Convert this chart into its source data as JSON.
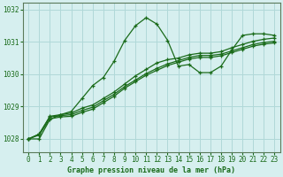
{
  "xlabel": "Graphe pression niveau de la mer (hPa)",
  "ylim": [
    1027.6,
    1032.2
  ],
  "xlim": [
    -0.5,
    23.5
  ],
  "yticks": [
    1028,
    1029,
    1030,
    1031,
    1032
  ],
  "xticks": [
    0,
    1,
    2,
    3,
    4,
    5,
    6,
    7,
    8,
    9,
    10,
    11,
    12,
    13,
    14,
    15,
    16,
    17,
    18,
    19,
    20,
    21,
    22,
    23
  ],
  "bg_color": "#d6efef",
  "line_color": "#1a6b1a",
  "series": [
    [
      1028.0,
      1028.0,
      1028.6,
      1028.75,
      1028.85,
      1029.25,
      1029.65,
      1029.9,
      1030.4,
      1031.05,
      1031.5,
      1031.75,
      1031.55,
      1031.05,
      1030.25,
      1030.3,
      1030.05,
      1030.05,
      1030.25,
      1030.75,
      1031.2,
      1031.25,
      1031.25,
      1031.2
    ],
    [
      1028.0,
      1028.15,
      1028.7,
      1028.75,
      1028.8,
      1028.95,
      1029.05,
      1029.25,
      1029.45,
      1029.7,
      1029.95,
      1030.15,
      1030.35,
      1030.45,
      1030.5,
      1030.6,
      1030.65,
      1030.65,
      1030.7,
      1030.82,
      1030.92,
      1031.02,
      1031.08,
      1031.12
    ],
    [
      1028.0,
      1028.15,
      1028.68,
      1028.72,
      1028.75,
      1028.88,
      1028.98,
      1029.18,
      1029.38,
      1029.62,
      1029.82,
      1030.02,
      1030.18,
      1030.32,
      1030.42,
      1030.52,
      1030.58,
      1030.58,
      1030.62,
      1030.72,
      1030.82,
      1030.92,
      1030.98,
      1031.02
    ],
    [
      1028.0,
      1028.12,
      1028.62,
      1028.68,
      1028.7,
      1028.82,
      1028.92,
      1029.12,
      1029.32,
      1029.57,
      1029.77,
      1029.97,
      1030.12,
      1030.27,
      1030.37,
      1030.47,
      1030.52,
      1030.52,
      1030.57,
      1030.67,
      1030.77,
      1030.87,
      1030.93,
      1030.97
    ]
  ],
  "marker": "+",
  "markersize": 3.5,
  "linewidth": 0.9,
  "tick_fontsize": 5.5,
  "xlabel_fontsize": 6.0,
  "grid_color": "#b0d8d8",
  "spine_color": "#5a7a5a"
}
